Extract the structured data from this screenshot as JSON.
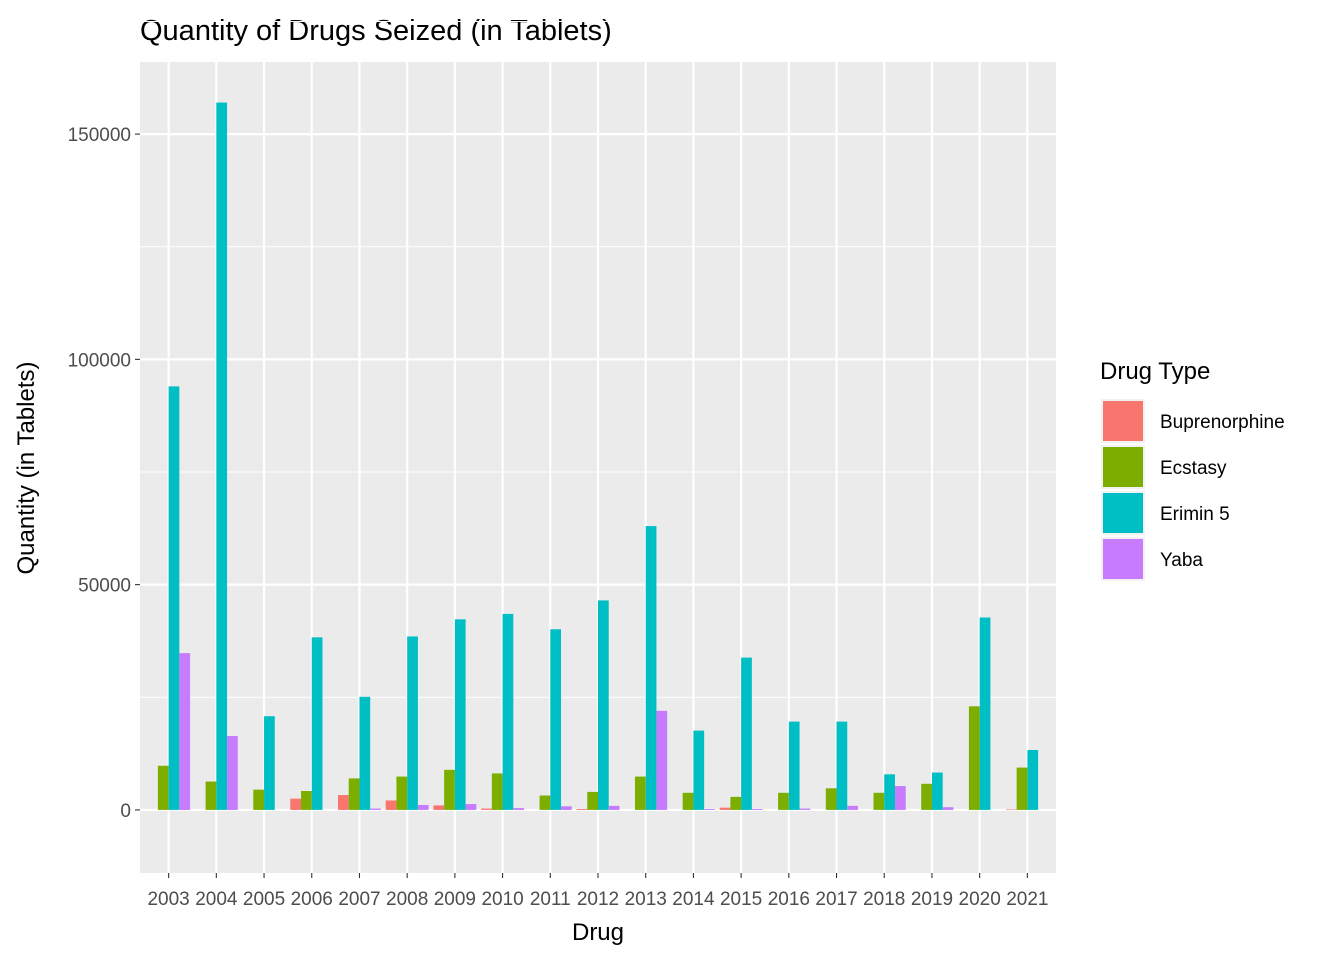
{
  "chart_data": {
    "type": "bar",
    "title": "Quantity of Drugs Seized (in Tablets)",
    "xlabel": "Drug",
    "ylabel": "Quantity (in Tablets)",
    "ylim": [
      -14000,
      166000
    ],
    "yticks": [
      0,
      50000,
      100000,
      150000
    ],
    "ytick_labels": [
      "0",
      "50000",
      "100000",
      "150000"
    ],
    "grid": true,
    "legend": {
      "title": "Drug Type",
      "position": "right"
    },
    "categories": [
      "2003",
      "2004",
      "2005",
      "2006",
      "2007",
      "2008",
      "2009",
      "2010",
      "2011",
      "2012",
      "2013",
      "2014",
      "2015",
      "2016",
      "2017",
      "2018",
      "2019",
      "2020",
      "2021"
    ],
    "series": [
      {
        "name": "Buprenorphine",
        "color": "#f8766d",
        "values": [
          null,
          null,
          null,
          2500,
          3300,
          2100,
          1000,
          300,
          null,
          200,
          null,
          null,
          500,
          null,
          null,
          null,
          null,
          null,
          100
        ]
      },
      {
        "name": "Ecstasy",
        "color": "#7cae00",
        "values": [
          9800,
          6300,
          4500,
          4200,
          7000,
          7400,
          8900,
          8100,
          3200,
          4000,
          7400,
          3800,
          2900,
          3800,
          4800,
          3800,
          5800,
          23000,
          9400
        ]
      },
      {
        "name": "Erimin 5",
        "color": "#00bfc4",
        "values": [
          94000,
          157000,
          20800,
          38300,
          25100,
          38500,
          42300,
          43500,
          40100,
          46500,
          63000,
          17600,
          33800,
          19600,
          19600,
          7900,
          8300,
          42700,
          13300
        ]
      },
      {
        "name": "Yaba",
        "color": "#c77cff",
        "values": [
          34800,
          16400,
          null,
          null,
          300,
          1100,
          1300,
          400,
          800,
          900,
          22000,
          200,
          200,
          300,
          900,
          5300,
          600,
          null,
          null
        ]
      }
    ]
  }
}
